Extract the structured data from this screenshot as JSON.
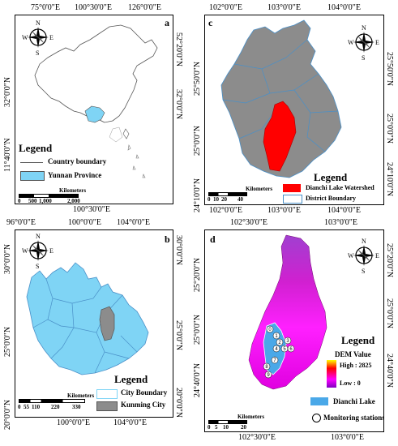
{
  "panel_a": {
    "label": "a",
    "top_ticks": [
      "75°0'0\"E",
      "100°30'0\"E",
      "126°0'0\"E"
    ],
    "bottom_ticks": [
      "100°30'0\"E"
    ],
    "left_ticks": [
      "32°0'0\"N",
      "11°40'0\"N"
    ],
    "right_ticks": [
      "52°20'0\"N",
      "32°0'0\"N"
    ],
    "legend_title": "Legend",
    "legend_items": [
      "Country boundary",
      "Yunnan Province"
    ],
    "scale_unit": "Kilometers",
    "scale_values": [
      "0",
      "500",
      "1,000",
      "2,000"
    ],
    "colors": {
      "yunnan": "#7fd4f5"
    }
  },
  "panel_b": {
    "label": "b",
    "top_ticks": [
      "96°0'0\"E",
      "100°0'0\"E",
      "104°0'0\"E"
    ],
    "bottom_ticks": [
      "100°0'0\"E",
      "104°0'0\"E"
    ],
    "left_ticks": [
      "30°0'0\"N",
      "25°0'0\"N",
      "20°0'0\"N"
    ],
    "right_ticks": [
      "30°0'0\"N",
      "25°0'0\"N",
      "20°0'0\"N"
    ],
    "legend_title": "Legend",
    "legend_items": [
      "City Boundary",
      "Kunming City"
    ],
    "scale_unit": "Kilometers",
    "scale_values": [
      "0",
      "55",
      "110",
      "220",
      "330"
    ],
    "colors": {
      "province": "#7fd4f5",
      "kunming": "#8c8c8c"
    }
  },
  "panel_c": {
    "label": "c",
    "top_ticks": [
      "102°0'0\"E",
      "103°0'0\"E",
      "104°0'0\"E"
    ],
    "bottom_ticks": [
      "102°0'0\"E",
      "103°0'0\"E",
      "104°0'0\"E"
    ],
    "left_ticks": [
      "25°50'0\"N",
      "25°0'0\"N",
      "24°10'0\"N"
    ],
    "right_ticks": [
      "25°50'0\"N",
      "25°0'0\"N",
      "24°10'0\"N"
    ],
    "legend_title": "Legend",
    "legend_items": [
      "Dianchi Lake Watershed",
      "District Boundary"
    ],
    "scale_unit": "Kilometers",
    "scale_values": [
      "0",
      "10",
      "20",
      "40"
    ],
    "colors": {
      "kunming": "#8c8c8c",
      "watershed": "#ff0000"
    }
  },
  "panel_d": {
    "label": "d",
    "top_ticks": [
      "102°30'0\"E",
      "103°0'0\"E"
    ],
    "bottom_ticks": [
      "102°30'0\"E",
      "103°0'0\"E"
    ],
    "left_ticks": [
      "25°20'0\"N",
      "25°0'0\"N",
      "24°40'0\"N"
    ],
    "right_ticks": [
      "25°20'0\"N",
      "25°0'0\"N",
      "24°40'0\"N"
    ],
    "legend_title": "Legend",
    "dem_title": "DEM Value",
    "dem_high": "High : 2825",
    "dem_low": "Low : 0",
    "legend_items": [
      "Dianchi Lake",
      "Monitoring stations"
    ],
    "scale_unit": "Kilometers",
    "scale_values": [
      "0",
      "5",
      "10",
      "20"
    ],
    "stations": [
      "0",
      "1",
      "2",
      "3",
      "4",
      "5",
      "6",
      "7",
      "8",
      "9"
    ],
    "colors": {
      "lake": "#4aa8e8",
      "dem_high": "#ff0000",
      "dem_low": "#ff00ff"
    }
  },
  "compass": {
    "n": "N",
    "s": "S",
    "e": "E",
    "w": "W"
  }
}
